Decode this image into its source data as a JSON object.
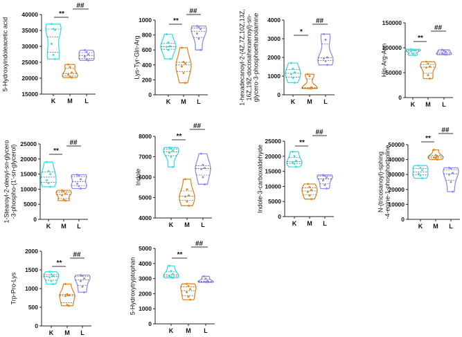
{
  "colors": {
    "K": "#2fe3ee",
    "M": "#e8861a",
    "L": "#8c8cf0",
    "axis": "#222222"
  },
  "chart_data": [
    {
      "type": "violin",
      "ylabel": [
        "5-Hydroxyindoleacetic acid"
      ],
      "ylim": [
        15000,
        40000
      ],
      "ticks": [
        15000,
        20000,
        25000,
        30000,
        35000,
        40000
      ],
      "categories": [
        "K",
        "M",
        "L"
      ],
      "values": {
        "K": [
          37000,
          35500,
          35200,
          30800,
          27300,
          26000
        ],
        "M": [
          24300,
          23500,
          21800,
          21200,
          20500,
          20200
        ],
        "L": [
          28800,
          28200,
          27500,
          26800,
          26000,
          25600
        ]
      },
      "significance": [
        "**",
        "##"
      ]
    },
    {
      "type": "violin",
      "ylabel": [
        "Lys-Tyr-Gln-Arg"
      ],
      "ylim": [
        0,
        1000
      ],
      "ticks": [
        0,
        200,
        400,
        600,
        800,
        1000
      ],
      "categories": [
        "K",
        "M",
        "L"
      ],
      "values": {
        "K": [
          810,
          700,
          650,
          640,
          600,
          480
        ],
        "M": [
          630,
          440,
          420,
          380,
          290,
          160
        ],
        "L": [
          920,
          900,
          880,
          820,
          750,
          600
        ]
      },
      "significance": [
        "**",
        "##"
      ]
    },
    {
      "type": "violin",
      "ylabel": [
        "1-hexadecanoyl-2-(4Z,7Z,10Z,13Z,",
        "16Z,19Z-docosahexaenoyl)-sn-",
        "glycero-3-phosphoethanolamine"
      ],
      "ylim": [
        0,
        4000
      ],
      "ticks": [
        0,
        1000,
        2000,
        3000,
        4000
      ],
      "categories": [
        "K",
        "M",
        "L"
      ],
      "values": {
        "K": [
          1700,
          1400,
          1200,
          1100,
          900,
          650
        ],
        "M": [
          1100,
          1000,
          400,
          350,
          350,
          340
        ],
        "L": [
          3250,
          2950,
          2000,
          1950,
          1800,
          1600
        ]
      },
      "significance": [
        "*",
        "##"
      ]
    },
    {
      "type": "violin",
      "ylabel": [
        "His-Arg-Asn"
      ],
      "ylim": [
        0,
        150000
      ],
      "ticks": [
        0,
        50000,
        100000,
        150000
      ],
      "categories": [
        "K",
        "M",
        "L"
      ],
      "values": {
        "K": [
          97000,
          96000,
          95000,
          93000,
          88000,
          85000
        ],
        "M": [
          72000,
          68000,
          62000,
          60000,
          45000,
          38000
        ],
        "L": [
          96000,
          94000,
          91000,
          89000,
          87000,
          86000
        ]
      },
      "significance": [
        "**",
        "##"
      ]
    },
    {
      "type": "violin",
      "ylabel": [
        "1-Stearoyl-2-oleoyl-sn-glycero",
        "-3-phospho-(1'-sn-glycerol)"
      ],
      "ylim": [
        0,
        25000
      ],
      "ticks": [
        0,
        5000,
        10000,
        15000,
        20000,
        25000
      ],
      "categories": [
        "K",
        "M",
        "L"
      ],
      "values": {
        "K": [
          19000,
          16000,
          15000,
          13000,
          12000,
          10800
        ],
        "M": [
          9600,
          9200,
          8500,
          8000,
          6500,
          6200
        ],
        "L": [
          14800,
          14500,
          13300,
          11800,
          11000,
          10200
        ]
      },
      "significance": [
        "**",
        "##"
      ]
    },
    {
      "type": "violin",
      "ylabel": [
        "Indole"
      ],
      "ylim": [
        4000,
        8000
      ],
      "ticks": [
        4000,
        5000,
        6000,
        7000,
        8000
      ],
      "categories": [
        "K",
        "M",
        "L"
      ],
      "values": {
        "K": [
          7450,
          7400,
          7300,
          7200,
          7000,
          6500
        ],
        "M": [
          5900,
          5400,
          5100,
          5050,
          4800,
          4600
        ],
        "L": [
          7150,
          6600,
          6450,
          6400,
          6000,
          5650
        ]
      },
      "significance": [
        "**",
        "##"
      ]
    },
    {
      "type": "violin",
      "ylabel": [
        "Indole-3-carboxaldehyde"
      ],
      "ylim": [
        0,
        25000
      ],
      "ticks": [
        0,
        5000,
        10000,
        15000,
        20000,
        25000
      ],
      "categories": [
        "K",
        "M",
        "L"
      ],
      "values": {
        "K": [
          21500,
          20000,
          18500,
          18000,
          17500,
          16500
        ],
        "M": [
          10800,
          9800,
          8800,
          8200,
          7000,
          5800
        ],
        "L": [
          13800,
          13500,
          13000,
          12000,
          10500,
          9300
        ]
      },
      "significance": [
        "**",
        "##"
      ]
    },
    {
      "type": "violin",
      "ylabel": [
        "N-(tricosanoyl)-sphing",
        "-4-enine-1-phosphocholine"
      ],
      "ylim": [
        0,
        50000
      ],
      "ticks": [
        0,
        10000,
        20000,
        30000,
        40000,
        50000
      ],
      "categories": [
        "K",
        "M",
        "L"
      ],
      "values": {
        "K": [
          36000,
          34500,
          33000,
          30500,
          29500,
          27500
        ],
        "M": [
          46500,
          43000,
          42000,
          41500,
          41000,
          40000
        ],
        "L": [
          34500,
          34000,
          31000,
          30000,
          25000,
          18500
        ]
      },
      "significance": [
        "**",
        "##"
      ]
    },
    {
      "type": "violin",
      "ylabel": [
        "Trp-Pro-Lys"
      ],
      "ylim": [
        0,
        2000
      ],
      "ticks": [
        0,
        500,
        1000,
        1500,
        2000
      ],
      "categories": [
        "K",
        "M",
        "L"
      ],
      "values": {
        "K": [
          1450,
          1380,
          1340,
          1300,
          1200,
          1120
        ],
        "M": [
          1120,
          850,
          820,
          800,
          560,
          540
        ],
        "L": [
          1360,
          1340,
          1270,
          1200,
          1050,
          900
        ]
      },
      "significance": [
        "**",
        "##"
      ]
    },
    {
      "type": "violin",
      "ylabel": [
        "5-Hydroxytryptophan"
      ],
      "ylim": [
        0,
        5000
      ],
      "ticks": [
        0,
        1000,
        2000,
        3000,
        4000,
        5000
      ],
      "categories": [
        "K",
        "M",
        "L"
      ],
      "values": {
        "K": [
          3850,
          3500,
          3300,
          3200,
          3100,
          3050
        ],
        "M": [
          2650,
          2500,
          2300,
          2100,
          1800,
          1600
        ],
        "L": [
          3150,
          3000,
          2850,
          2800,
          2780,
          2750
        ]
      },
      "significance": [
        "**",
        "##"
      ]
    }
  ]
}
